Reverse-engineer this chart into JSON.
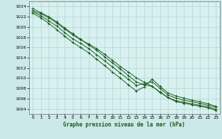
{
  "title": "Graphe pression niveau de la mer (hPa)",
  "bg_color": "#cce8e8",
  "plot_bg_color": "#d8f0f0",
  "grid_color": "#b8d8d8",
  "line_color": "#1a5c1a",
  "xlim": [
    -0.5,
    23.5
  ],
  "ylim": [
    1003.0,
    1025.0
  ],
  "yticks": [
    1004,
    1006,
    1008,
    1010,
    1012,
    1014,
    1016,
    1018,
    1020,
    1022,
    1024
  ],
  "xticks": [
    0,
    1,
    2,
    3,
    4,
    5,
    6,
    7,
    8,
    9,
    10,
    11,
    12,
    13,
    14,
    15,
    16,
    17,
    18,
    19,
    20,
    21,
    22,
    23
  ],
  "lines": [
    [
      1023.2,
      1022.6,
      1021.8,
      1020.8,
      1019.6,
      1018.5,
      1017.5,
      1016.7,
      1015.8,
      1014.7,
      1013.5,
      1012.3,
      1011.2,
      1010.1,
      1009.2,
      1008.4,
      1007.3,
      1006.2,
      1005.4,
      1005.1,
      1004.8,
      1004.5,
      1004.2,
      1003.7
    ],
    [
      1023.6,
      1022.8,
      1022.0,
      1021.0,
      1019.8,
      1018.7,
      1017.6,
      1016.5,
      1015.5,
      1014.2,
      1013.0,
      1011.8,
      1010.5,
      1009.3,
      1008.7,
      1008.4,
      1007.2,
      1006.2,
      1005.6,
      1005.3,
      1005.0,
      1004.7,
      1004.4,
      1003.9
    ],
    [
      1023.0,
      1022.2,
      1021.2,
      1020.2,
      1018.9,
      1017.7,
      1016.8,
      1015.8,
      1014.6,
      1013.4,
      1012.2,
      1011.0,
      1009.8,
      1008.6,
      1008.9,
      1009.3,
      1008.0,
      1006.7,
      1006.1,
      1005.7,
      1005.4,
      1005.1,
      1004.7,
      1004.3
    ],
    [
      1022.7,
      1021.8,
      1020.7,
      1019.5,
      1018.2,
      1017.0,
      1016.0,
      1015.0,
      1013.7,
      1012.5,
      1011.2,
      1010.0,
      1008.7,
      1007.5,
      1008.3,
      1009.8,
      1008.4,
      1007.1,
      1006.5,
      1006.1,
      1005.7,
      1005.4,
      1005.0,
      1004.5
    ]
  ]
}
